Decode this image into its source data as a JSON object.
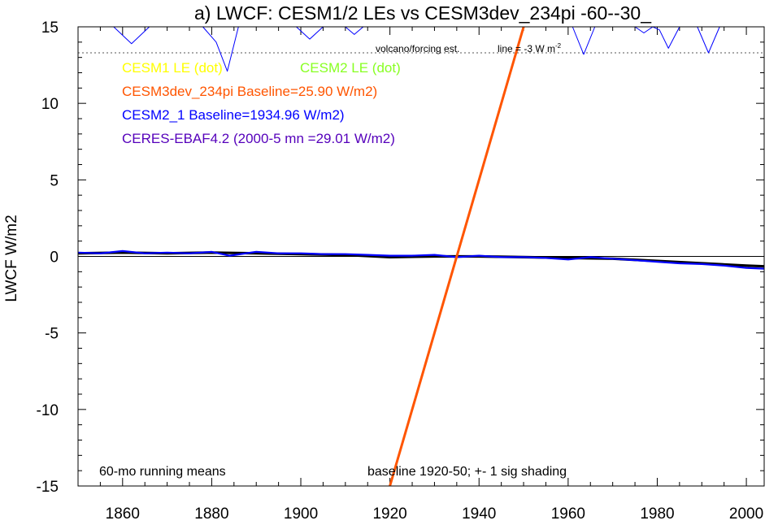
{
  "chart_data": {
    "type": "line",
    "title": "a) LWCF: CESM1/2 LEs vs CESM3dev_234pi -60--30_",
    "ylabel": "LWCF W/m2",
    "xlabel": "",
    "xlim": [
      1850,
      2004
    ],
    "ylim": [
      -15,
      15
    ],
    "x_ticks": [
      1860,
      1880,
      1900,
      1920,
      1940,
      1960,
      1980,
      2000
    ],
    "y_ticks": [
      15,
      10,
      5,
      0,
      -5,
      -10,
      -15
    ],
    "legend": [
      {
        "label": "CESM1 LE (dot)",
        "color": "#ffff00"
      },
      {
        "label": "CESM2 LE (dot)",
        "color": "#88ff22"
      },
      {
        "label": "CESM3dev_234pi Baseline=25.90 W/m2)",
        "color": "#ff5500"
      },
      {
        "label": "CESM2_1 Baseline=1934.96 W/m2)",
        "color": "#0000ff"
      },
      {
        "label": "CERES-EBAF4.2 (2000-5 mn =29.01 W/m2)",
        "color": "#5500bb"
      }
    ],
    "annotations": {
      "volcano_label": "volcano/forcing est.",
      "line_label": "line = -3 W m",
      "line_label_sup": "-2",
      "bottom_left": "60-mo running means",
      "bottom_right": "baseline 1920-50; +- 1 sig shading"
    },
    "reference_line_y": 13.3,
    "series": [
      {
        "name": "CESM3dev_234pi",
        "color": "#ff5500",
        "x": [
          1920,
          1950
        ],
        "y": [
          -15,
          15
        ]
      },
      {
        "name": "CESM2_1",
        "color": "#0000ff",
        "x": [
          1850,
          1855,
          1860,
          1865,
          1870,
          1875,
          1880,
          1884,
          1890,
          1895,
          1900,
          1905,
          1910,
          1915,
          1920,
          1925,
          1930,
          1935,
          1940,
          1945,
          1950,
          1955,
          1960,
          1965,
          1970,
          1975,
          1980,
          1985,
          1990,
          1995,
          2000,
          2004
        ],
        "y": [
          0.25,
          0.2,
          0.35,
          0.2,
          0.25,
          0.2,
          0.3,
          0.05,
          0.3,
          0.2,
          0.2,
          0.15,
          0.15,
          0.1,
          0.05,
          0.05,
          0.1,
          -0.05,
          0.05,
          -0.05,
          -0.05,
          -0.1,
          -0.2,
          -0.05,
          -0.15,
          -0.25,
          -0.35,
          -0.45,
          -0.5,
          -0.6,
          -0.75,
          -0.8
        ]
      },
      {
        "name": "CESM2 LE",
        "color": "#000000",
        "x": [
          1850,
          1860,
          1870,
          1880,
          1890,
          1900,
          1910,
          1920,
          1930,
          1940,
          1950,
          1960,
          1970,
          1980,
          1990,
          2000,
          2004
        ],
        "y": [
          0.2,
          0.25,
          0.2,
          0.25,
          0.2,
          0.15,
          0.1,
          -0.05,
          0.0,
          0.0,
          -0.05,
          -0.1,
          -0.15,
          -0.3,
          -0.45,
          -0.6,
          -0.65
        ]
      },
      {
        "name": "volcano/forcing est.",
        "color": "#0000ff",
        "x": [
          1850,
          1858,
          1862,
          1866,
          1878,
          1881,
          1883.5,
          1886,
          1899,
          1902,
          1905,
          1910,
          1912,
          1914,
          1925,
          1961,
          1963.5,
          1966,
          1975,
          1977,
          1979,
          1980.5,
          1982.5,
          1985,
          1989,
          1991.5,
          1994,
          2004
        ],
        "y": [
          15,
          15,
          13.9,
          15,
          15,
          14,
          12.1,
          15,
          15,
          14.2,
          15,
          15,
          14.5,
          15,
          15,
          15,
          13.2,
          15,
          15,
          14.6,
          15,
          14.8,
          13.6,
          15,
          15,
          13.3,
          15,
          15
        ]
      }
    ]
  }
}
